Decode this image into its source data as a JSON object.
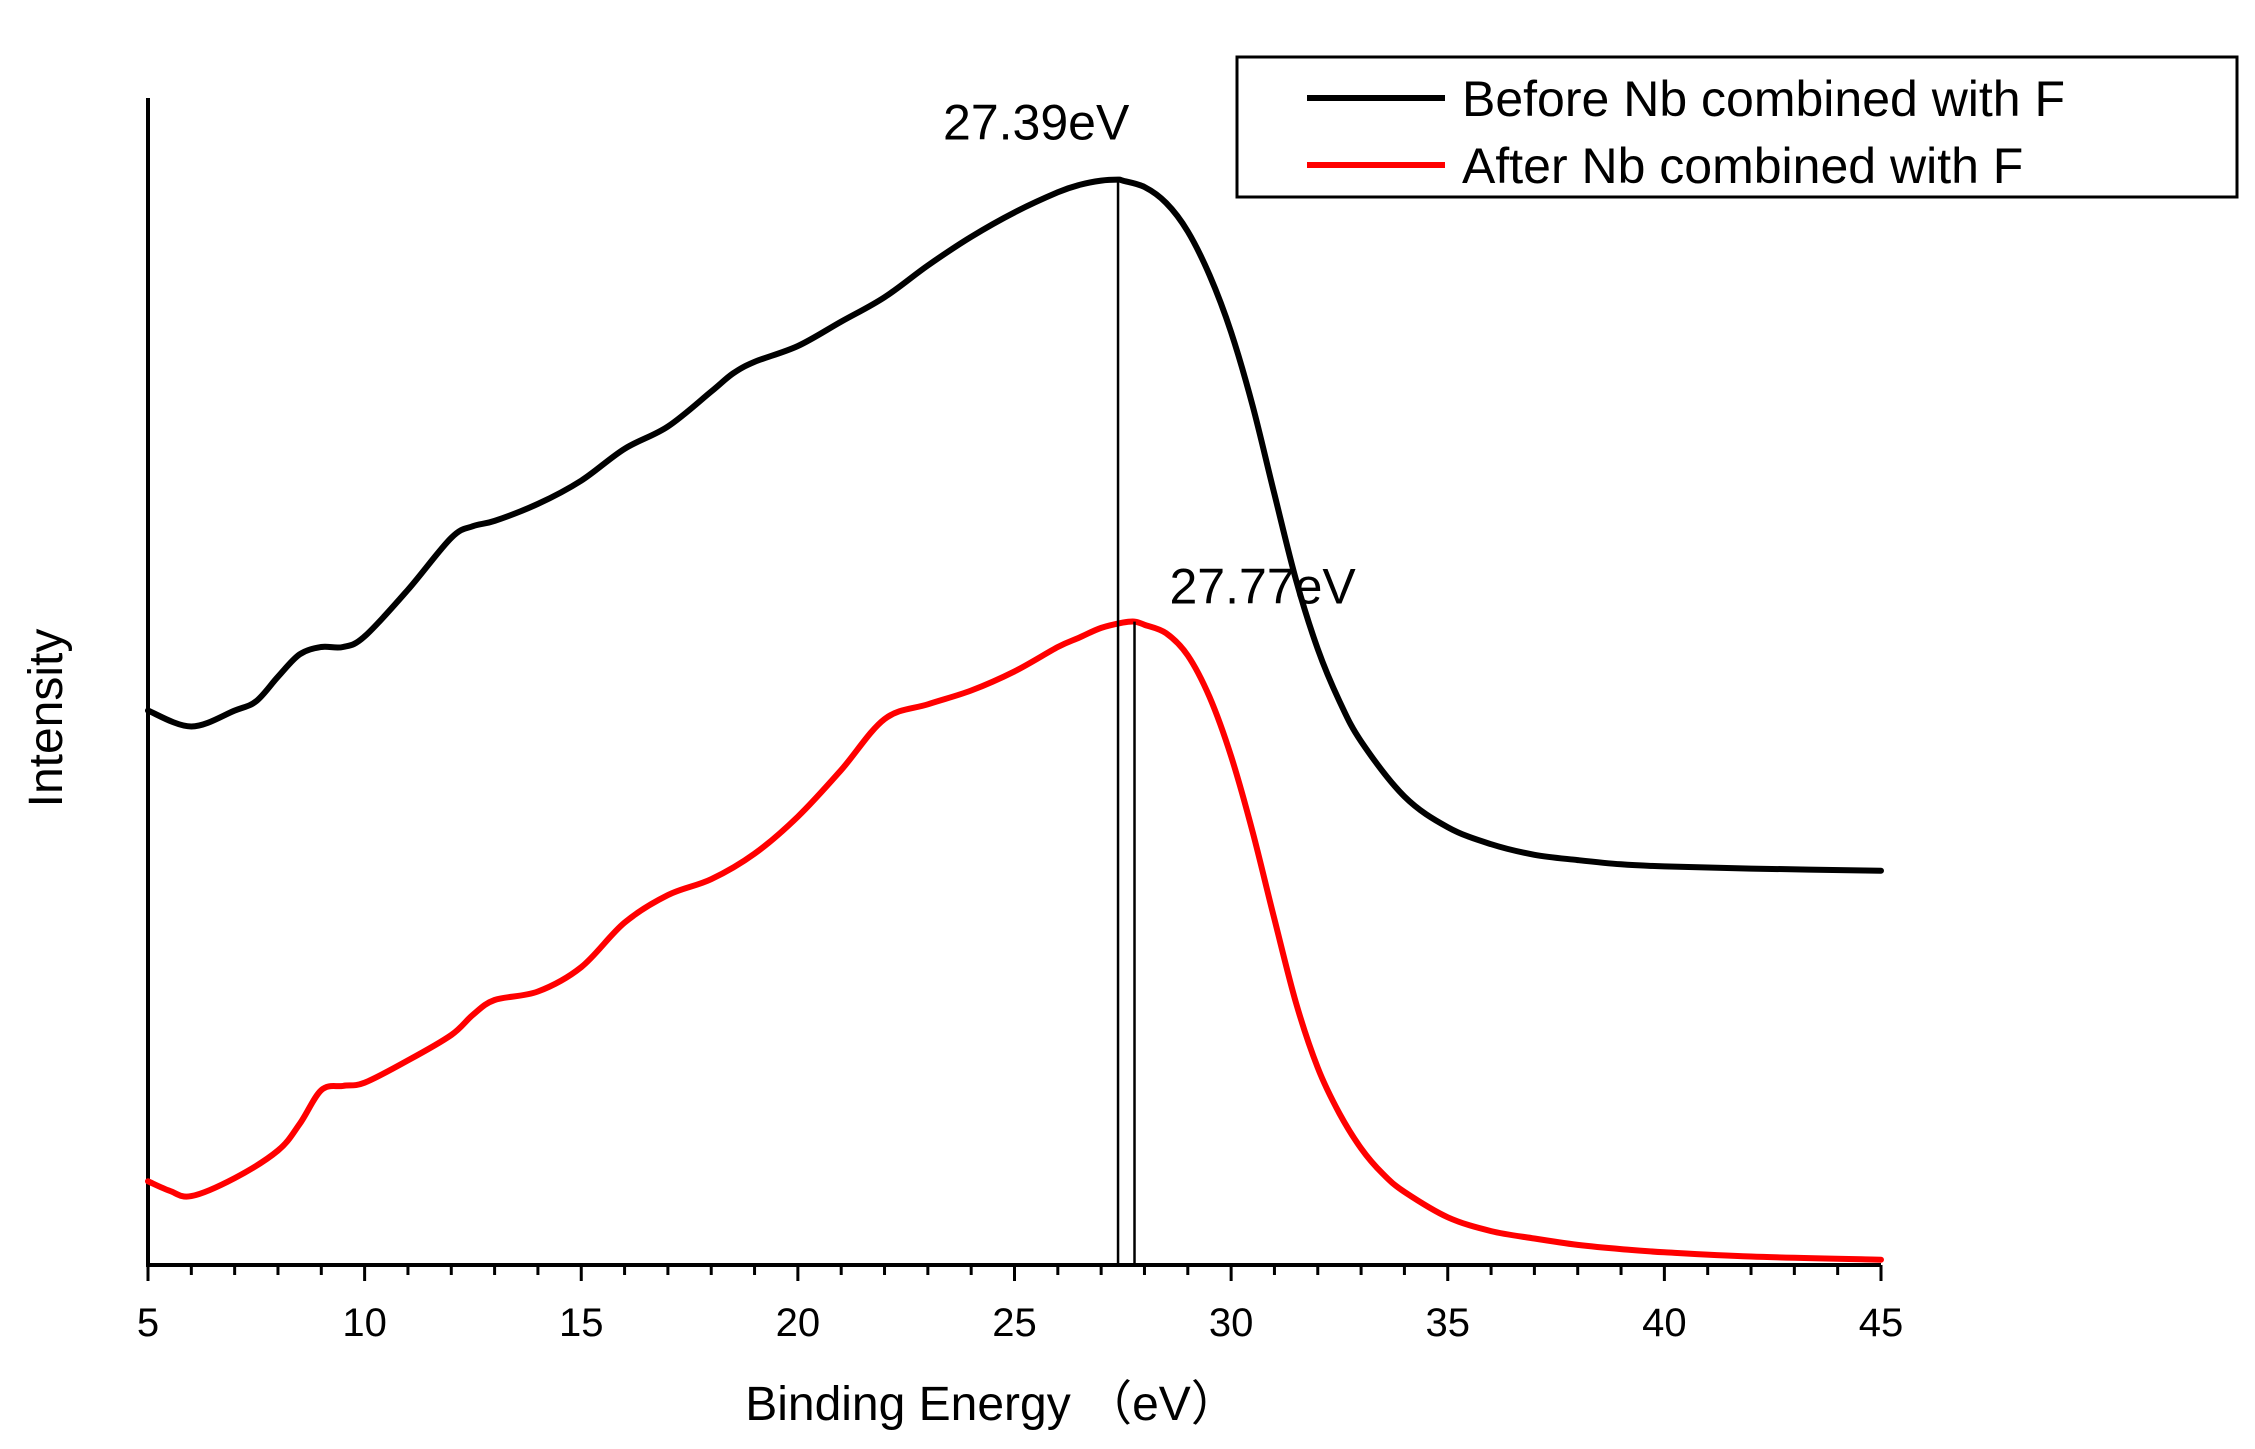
{
  "chart_data": {
    "type": "line",
    "title": "",
    "xlabel": "Binding Energy （eV）",
    "ylabel": "Intensity",
    "xlim": [
      5,
      45
    ],
    "ylim": [
      0,
      1
    ],
    "x_ticks": [
      5,
      10,
      15,
      20,
      25,
      30,
      35,
      40,
      45
    ],
    "x_tick_labels": [
      "5",
      "10",
      "15",
      "20",
      "25",
      "30",
      "35",
      "40",
      "45"
    ],
    "y_ticks_shown": false,
    "grid": false,
    "legend": {
      "position": "top-right",
      "frame": true
    },
    "series": [
      {
        "name": "Before Nb combined with F",
        "color": "#000000",
        "x": [
          5,
          6,
          7,
          7.5,
          8,
          8.5,
          9,
          9.5,
          10,
          11,
          12,
          12.5,
          13,
          14,
          15,
          16,
          17,
          18,
          18.5,
          19,
          20,
          21,
          22,
          23,
          24,
          25,
          26,
          26.5,
          27,
          27.39,
          27.5,
          28,
          28.5,
          29,
          29.5,
          30,
          30.5,
          31,
          31.5,
          32,
          32.5,
          33,
          34,
          35,
          36,
          37,
          38,
          39,
          40,
          42,
          45
        ],
        "values": [
          0.523,
          0.508,
          0.523,
          0.532,
          0.555,
          0.576,
          0.583,
          0.583,
          0.593,
          0.637,
          0.686,
          0.697,
          0.702,
          0.718,
          0.74,
          0.77,
          0.791,
          0.824,
          0.841,
          0.852,
          0.867,
          0.89,
          0.913,
          0.943,
          0.97,
          0.993,
          1.012,
          1.019,
          1.023,
          1.024,
          1.023,
          1.017,
          1.002,
          0.975,
          0.934,
          0.88,
          0.81,
          0.727,
          0.646,
          0.581,
          0.532,
          0.494,
          0.442,
          0.413,
          0.397,
          0.387,
          0.382,
          0.378,
          0.376,
          0.374,
          0.372
        ]
      },
      {
        "name": "After Nb combined with F",
        "color": "#ff0000",
        "x": [
          5,
          5.5,
          6,
          7,
          8,
          8.5,
          9,
          9.5,
          10,
          11,
          12,
          12.5,
          13,
          14,
          15,
          16,
          17,
          18,
          19,
          20,
          21,
          22,
          23,
          24,
          25,
          26,
          26.5,
          27,
          27.5,
          27.77,
          28,
          28.5,
          29,
          29.5,
          30,
          30.5,
          31,
          31.5,
          32,
          32.5,
          33,
          33.5,
          34,
          35,
          36,
          37,
          38,
          39,
          40,
          42,
          45
        ],
        "values": [
          0.079,
          0.07,
          0.065,
          0.082,
          0.108,
          0.133,
          0.165,
          0.169,
          0.172,
          0.193,
          0.217,
          0.236,
          0.25,
          0.258,
          0.281,
          0.323,
          0.349,
          0.364,
          0.388,
          0.423,
          0.467,
          0.515,
          0.529,
          0.542,
          0.56,
          0.583,
          0.592,
          0.601,
          0.606,
          0.607,
          0.604,
          0.596,
          0.575,
          0.536,
          0.48,
          0.408,
          0.326,
          0.247,
          0.186,
          0.143,
          0.11,
          0.086,
          0.069,
          0.045,
          0.032,
          0.025,
          0.019,
          0.015,
          0.012,
          0.008,
          0.005
        ]
      }
    ],
    "annotations": [
      {
        "text": "27.39eV",
        "x": 27.39,
        "series": "Before Nb combined with F"
      },
      {
        "text": "27.77eV",
        "x": 27.77,
        "series": "After Nb combined with F"
      }
    ]
  }
}
